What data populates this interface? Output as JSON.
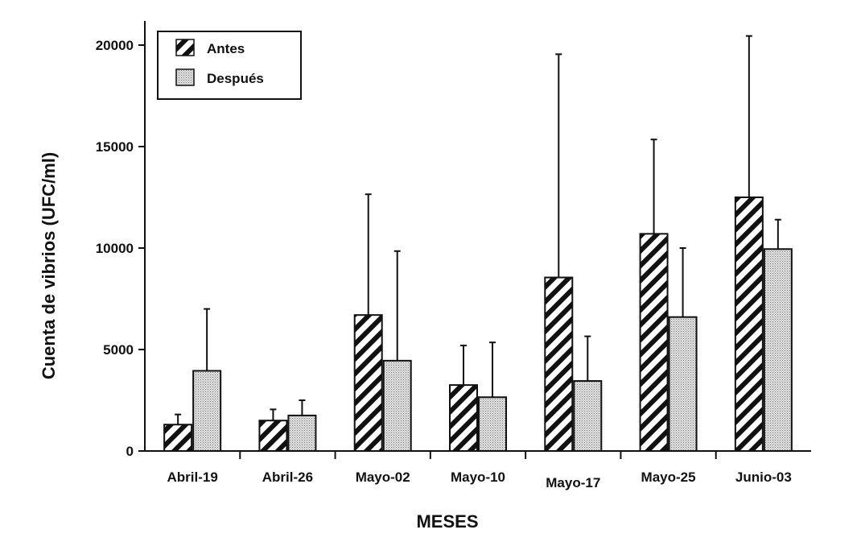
{
  "chart_data": {
    "type": "bar",
    "title": "",
    "xlabel": "MESES",
    "ylabel": "Cuenta de vibrios (UFC/ml)",
    "ylim": [
      0,
      22000
    ],
    "yticks": [
      0,
      5000,
      10000,
      15000,
      20000
    ],
    "ytick_labels": [
      "0",
      "5000",
      "10000",
      "15000",
      "20000"
    ],
    "categories": [
      "Abril-19",
      "Abril-26",
      "Mayo-02",
      "Mayo-10",
      "Mayo-17",
      "Mayo-25",
      "Junio-03"
    ],
    "series": [
      {
        "name": "Antes",
        "pattern": "diagonal-hatch",
        "values": [
          1300,
          1500,
          6700,
          3250,
          8550,
          10700,
          12500
        ],
        "error_upper": [
          1800,
          2050,
          12650,
          5200,
          19550,
          15350,
          20450
        ]
      },
      {
        "name": "Después",
        "pattern": "dotted",
        "values": [
          3950,
          1750,
          4450,
          2650,
          3450,
          6600,
          9950
        ],
        "error_upper": [
          7000,
          2500,
          9850,
          5350,
          5650,
          10000,
          11400
        ]
      }
    ],
    "legend": {
      "position": "top-left"
    },
    "grid": false
  }
}
